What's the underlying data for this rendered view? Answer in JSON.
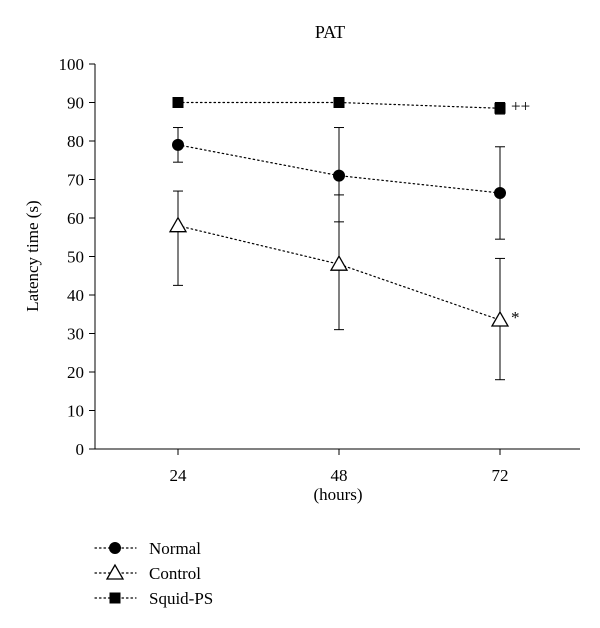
{
  "chart_data": {
    "type": "line",
    "title": "PAT",
    "xlabel": "(hours)",
    "ylabel": "Latency time (s)",
    "categories": [
      "24",
      "48",
      "72"
    ],
    "ylim": [
      0,
      100
    ],
    "yticks": [
      0,
      10,
      20,
      30,
      40,
      50,
      60,
      70,
      80,
      90,
      100
    ],
    "grid": false,
    "legend_position": "bottom-left",
    "series": [
      {
        "name": "Normal",
        "marker": "circle-filled",
        "values": [
          79,
          71,
          66.5
        ],
        "errors": [
          [
            74.5,
            83.5
          ],
          [
            59,
            83.5
          ],
          [
            54.5,
            78.5
          ]
        ]
      },
      {
        "name": "Control",
        "marker": "triangle-open",
        "values": [
          58,
          48,
          33.5
        ],
        "errors": [
          [
            42.5,
            67
          ],
          [
            31,
            66
          ],
          [
            18,
            49.5
          ]
        ]
      },
      {
        "name": "Squid-PS",
        "marker": "square-filled",
        "values": [
          90,
          90,
          88.5
        ],
        "errors": [
          [
            90,
            90
          ],
          [
            90,
            90
          ],
          [
            87,
            90
          ]
        ]
      }
    ],
    "annotations": [
      {
        "series": "Squid-PS",
        "category": "72",
        "text": "++"
      },
      {
        "series": "Control",
        "category": "72",
        "text": "*"
      }
    ]
  }
}
